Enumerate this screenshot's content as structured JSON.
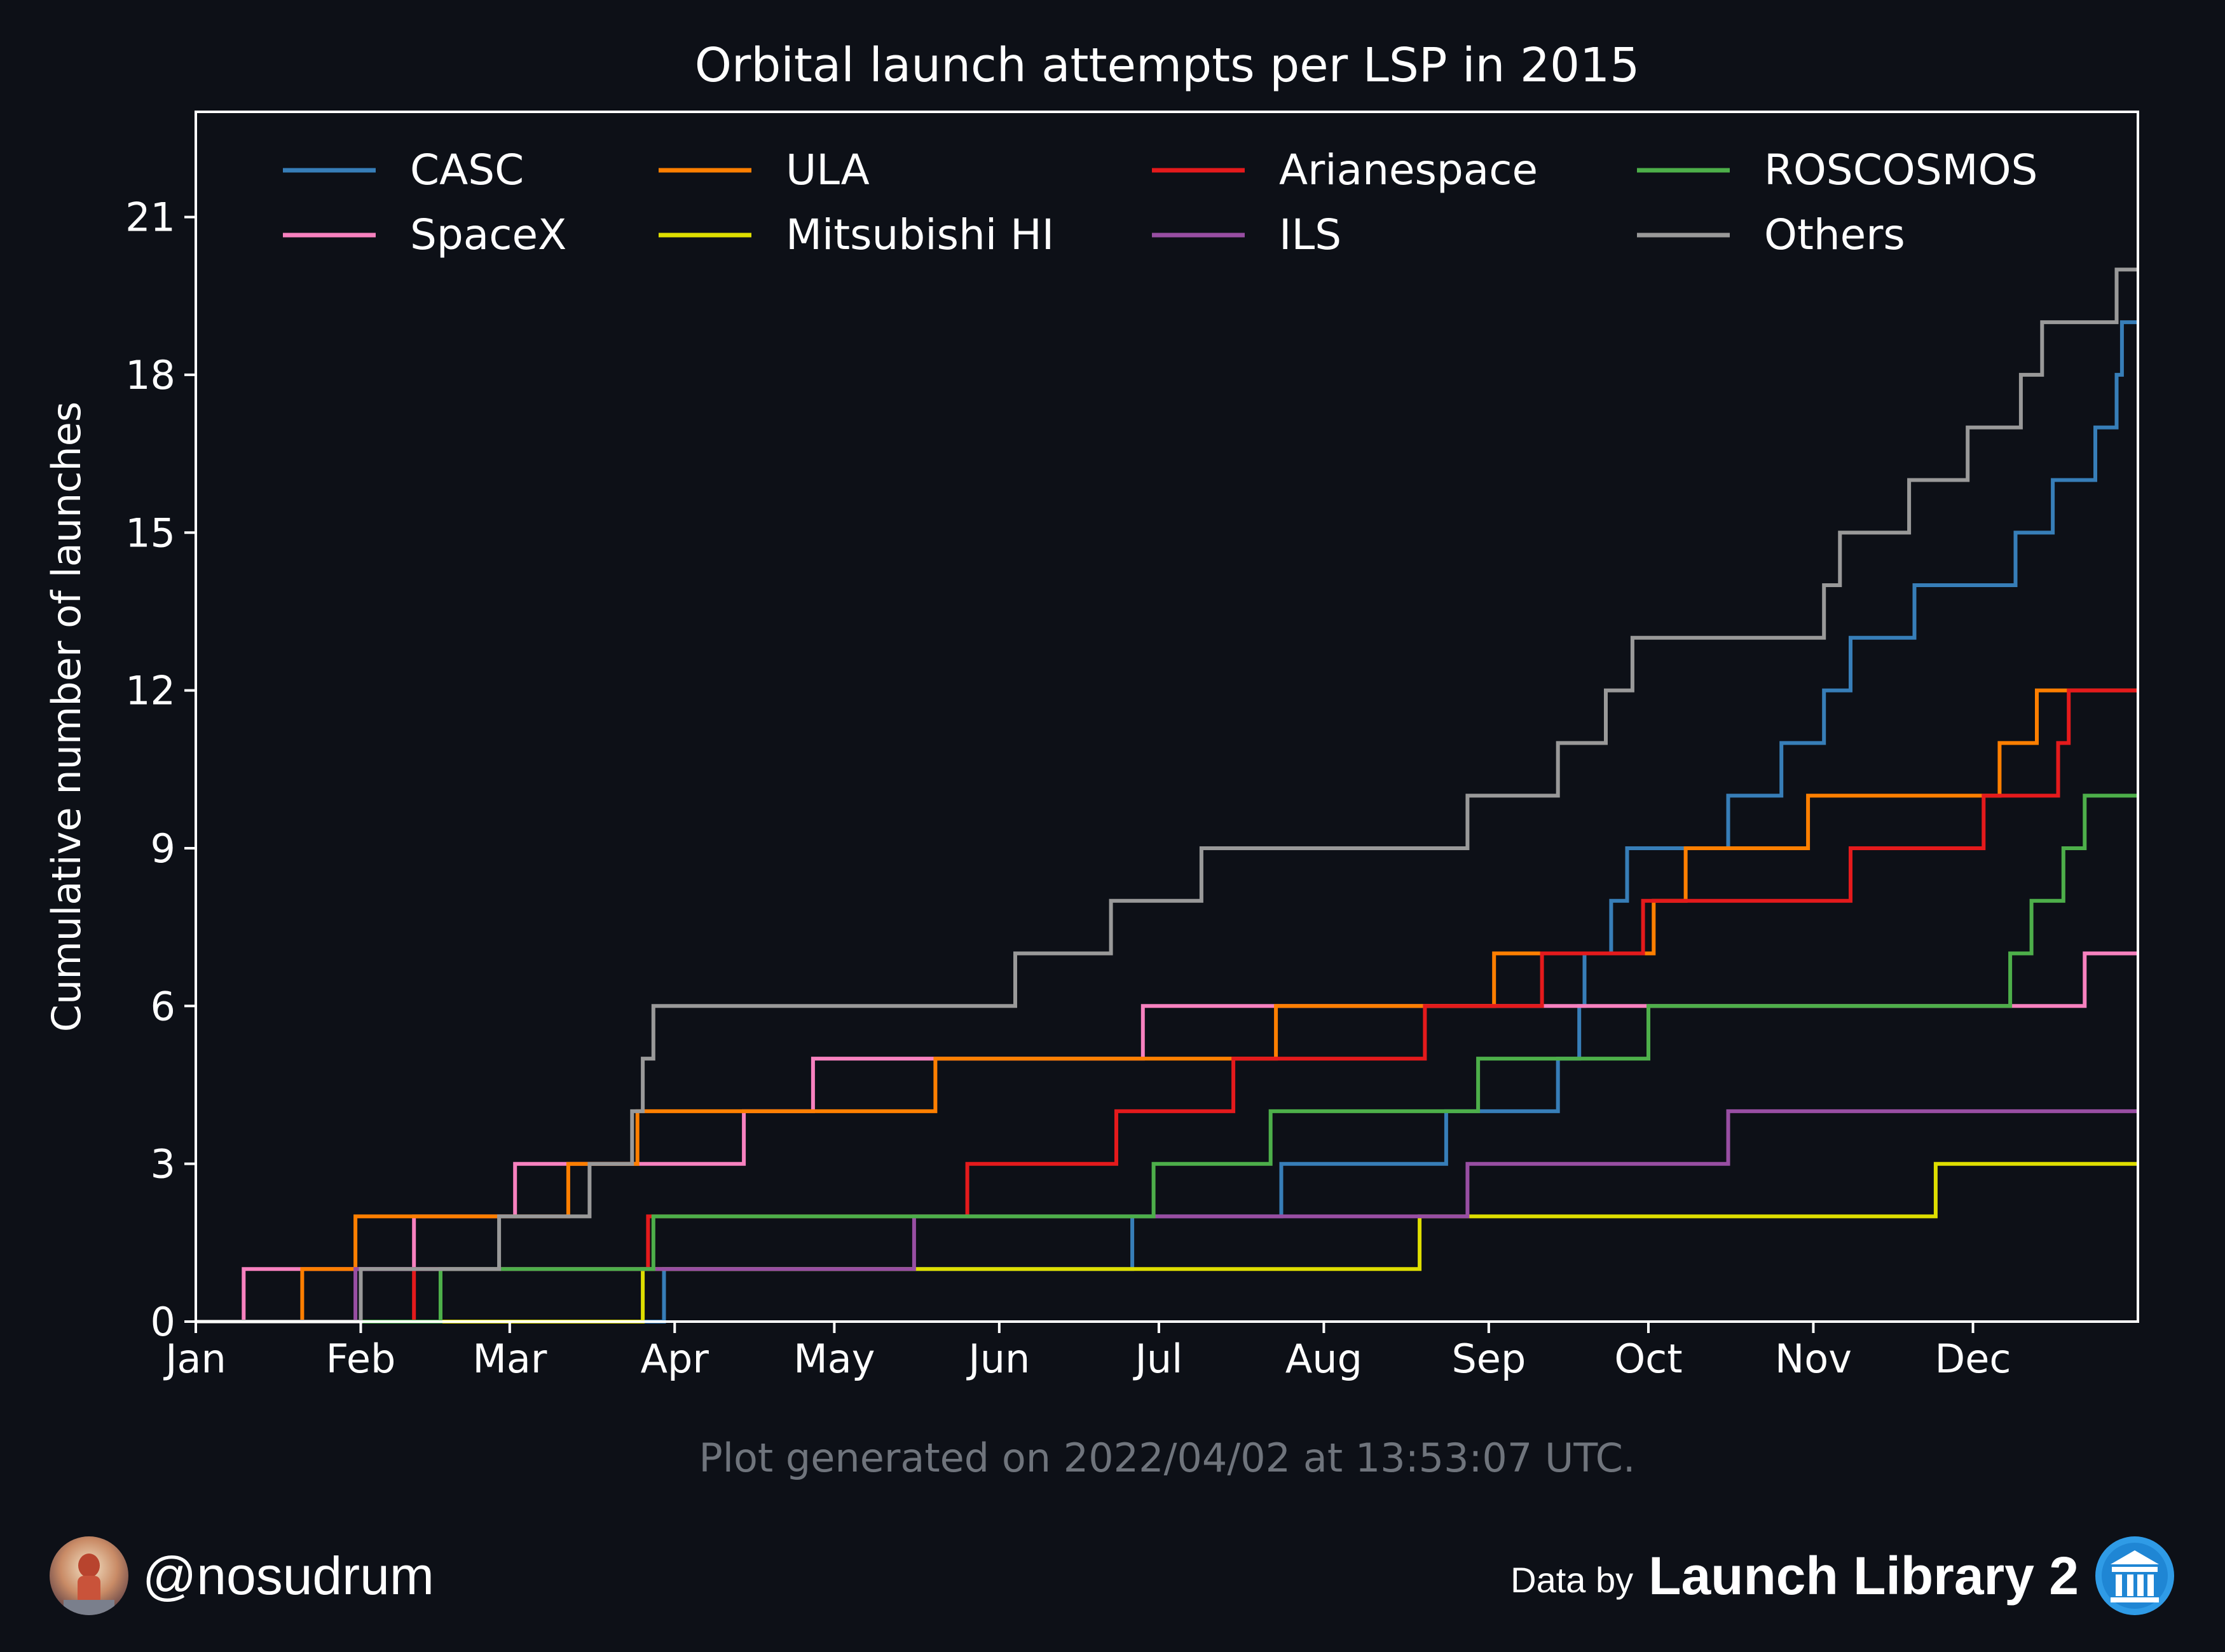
{
  "chart_data": {
    "type": "line",
    "step": "post",
    "title": "Orbital launch attempts per LSP in 2015",
    "xlabel": "",
    "ylabel": "Cumulative number of launches",
    "xlim": [
      "2015-01-01",
      "2015-12-31"
    ],
    "ylim": [
      0,
      23
    ],
    "yticks": [
      0,
      3,
      6,
      9,
      12,
      15,
      18,
      21
    ],
    "xticks": [
      {
        "date": "2015-01-01",
        "label": "Jan"
      },
      {
        "date": "2015-02-01",
        "label": "Feb"
      },
      {
        "date": "2015-03-01",
        "label": "Mar"
      },
      {
        "date": "2015-04-01",
        "label": "Apr"
      },
      {
        "date": "2015-05-01",
        "label": "May"
      },
      {
        "date": "2015-06-01",
        "label": "Jun"
      },
      {
        "date": "2015-07-01",
        "label": "Jul"
      },
      {
        "date": "2015-08-01",
        "label": "Aug"
      },
      {
        "date": "2015-09-01",
        "label": "Sep"
      },
      {
        "date": "2015-10-01",
        "label": "Oct"
      },
      {
        "date": "2015-11-01",
        "label": "Nov"
      },
      {
        "date": "2015-12-01",
        "label": "Dec"
      }
    ],
    "grid": false,
    "legend": "top",
    "series": [
      {
        "name": "CASC",
        "color": "#377eb8",
        "steps": [
          "2015-03-30",
          "2015-06-26",
          "2015-07-24",
          "2015-08-24",
          "2015-09-14",
          "2015-09-18",
          "2015-09-19",
          "2015-09-24",
          "2015-09-27",
          "2015-10-16",
          "2015-10-26",
          "2015-11-03",
          "2015-11-08",
          "2015-11-20",
          "2015-12-09",
          "2015-12-16",
          "2015-12-24",
          "2015-12-28",
          "2015-12-29"
        ]
      },
      {
        "name": "SpaceX",
        "color": "#f781bf",
        "steps": [
          "2015-01-10",
          "2015-02-11",
          "2015-03-02",
          "2015-04-14",
          "2015-04-27",
          "2015-06-28",
          "2015-12-22"
        ]
      },
      {
        "name": "ULA",
        "color": "#ff7f00",
        "steps": [
          "2015-01-21",
          "2015-01-31",
          "2015-03-12",
          "2015-03-25",
          "2015-05-20",
          "2015-07-23",
          "2015-09-02",
          "2015-10-02",
          "2015-10-08",
          "2015-10-31",
          "2015-12-06",
          "2015-12-13"
        ]
      },
      {
        "name": "Mitsubishi HI",
        "color": "#dede00",
        "steps": [
          "2015-03-26",
          "2015-08-19",
          "2015-11-24"
        ]
      },
      {
        "name": "Arianespace",
        "color": "#e41a1c",
        "steps": [
          "2015-02-11",
          "2015-03-27",
          "2015-05-26",
          "2015-06-23",
          "2015-07-15",
          "2015-08-20",
          "2015-09-11",
          "2015-09-30",
          "2015-11-08",
          "2015-12-03",
          "2015-12-17",
          "2015-12-19"
        ]
      },
      {
        "name": "ILS",
        "color": "#984ea3",
        "steps": [
          "2015-01-31",
          "2015-05-16",
          "2015-08-28",
          "2015-10-16"
        ]
      },
      {
        "name": "ROSCOSMOS",
        "color": "#4daf4a",
        "steps": [
          "2015-02-16",
          "2015-03-28",
          "2015-06-30",
          "2015-07-22",
          "2015-08-30",
          "2015-10-01",
          "2015-12-08",
          "2015-12-12",
          "2015-12-18",
          "2015-12-22"
        ]
      },
      {
        "name": "Others",
        "color": "#999999",
        "steps": [
          "2015-02-01",
          "2015-02-27",
          "2015-03-16",
          "2015-03-24",
          "2015-03-26",
          "2015-03-28",
          "2015-06-04",
          "2015-06-22",
          "2015-07-09",
          "2015-08-28",
          "2015-09-14",
          "2015-09-23",
          "2015-09-28",
          "2015-11-03",
          "2015-11-06",
          "2015-11-19",
          "2015-11-30",
          "2015-12-10",
          "2015-12-14",
          "2015-12-28"
        ]
      }
    ]
  },
  "footer": {
    "note": "Plot generated on 2022/04/02 at 13:53:07 UTC.",
    "handle": "@nosudrum",
    "data_by": "Data by",
    "source": "Launch Library 2"
  }
}
